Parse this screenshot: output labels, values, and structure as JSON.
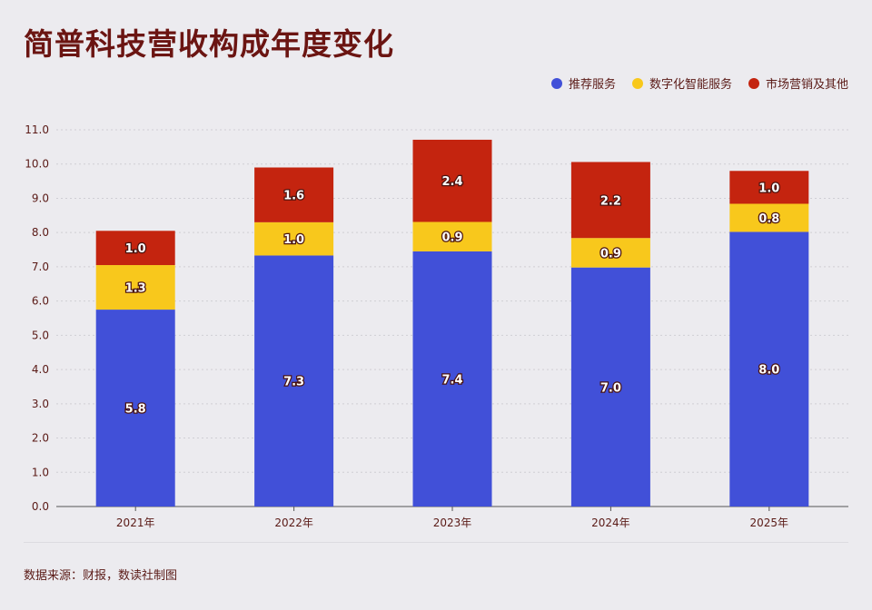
{
  "title": "简普科技营收构成年度变化",
  "source": "数据来源：财报，数读社制图",
  "colors": {
    "recommend": "#4150d8",
    "digital": "#f8c81c",
    "marketing": "#c4240f",
    "text": "#5a1a16",
    "title": "#6b1512"
  },
  "legend": [
    {
      "name": "推荐服务",
      "color": "#4150d8"
    },
    {
      "name": "数字化智能服务",
      "color": "#f8c81c"
    },
    {
      "name": "市场营销及其他",
      "color": "#c4240f"
    }
  ],
  "chart_data": {
    "type": "bar",
    "stacked": true,
    "categories": [
      "2021年",
      "2022年",
      "2023年",
      "2024年",
      "2025年"
    ],
    "series": [
      {
        "name": "推荐服务",
        "color": "#4150d8",
        "values": [
          5.75,
          7.33,
          7.45,
          6.98,
          8.02
        ],
        "labels": [
          "5.8",
          "7.3",
          "7.4",
          "7.0",
          "8.0"
        ]
      },
      {
        "name": "数字化智能服务",
        "color": "#f8c81c",
        "values": [
          1.3,
          0.97,
          0.86,
          0.86,
          0.82
        ],
        "labels": [
          "1.3",
          "1.0",
          "0.9",
          "0.9",
          "0.8"
        ]
      },
      {
        "name": "市场营销及其他",
        "color": "#c4240f",
        "values": [
          1.0,
          1.6,
          2.4,
          2.22,
          0.96
        ],
        "labels": [
          "1.0",
          "1.6",
          "2.4",
          "2.2",
          "1.0"
        ]
      }
    ],
    "ylim": [
      0,
      11
    ],
    "yticks": [
      "0.0",
      "1.0",
      "2.0",
      "3.0",
      "4.0",
      "5.0",
      "6.0",
      "7.0",
      "8.0",
      "9.0",
      "10.0",
      "11.0"
    ],
    "grid": true,
    "legend_position": "top-right"
  }
}
